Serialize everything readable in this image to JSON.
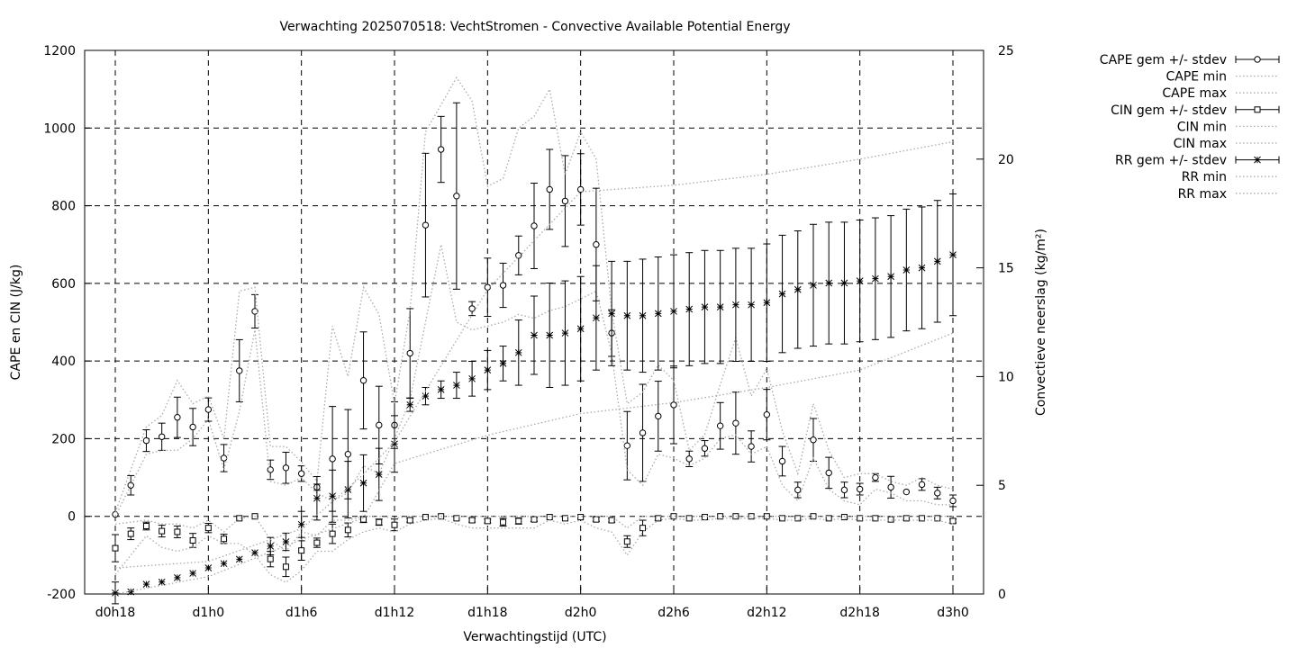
{
  "chart_data": {
    "type": "line",
    "title": "Verwachting 2025070518: VechtStromen - Convective Available Potential Energy",
    "xlabel": "Verwachtingstijd (UTC)",
    "ylabel": "CAPE en CIN (J/kg)",
    "y2label": "Convectieve neerslag (kg/m²)",
    "xlim": [
      0,
      54
    ],
    "ylim": [
      -200,
      1200
    ],
    "y2lim": [
      0,
      25
    ],
    "x_ticks": [
      {
        "x": 0,
        "label": "d0h18"
      },
      {
        "x": 6,
        "label": "d1h0"
      },
      {
        "x": 12,
        "label": "d1h6"
      },
      {
        "x": 18,
        "label": "d1h12"
      },
      {
        "x": 24,
        "label": "d1h18"
      },
      {
        "x": 30,
        "label": "d2h0"
      },
      {
        "x": 36,
        "label": "d2h6"
      },
      {
        "x": 42,
        "label": "d2h12"
      },
      {
        "x": 48,
        "label": "d2h18"
      },
      {
        "x": 54,
        "label": "d3h0"
      }
    ],
    "y_ticks": [
      "-200",
      "0",
      "200",
      "400",
      "600",
      "800",
      "1000",
      "1200"
    ],
    "y2_ticks": [
      "0",
      "5",
      "10",
      "15",
      "20",
      "25"
    ],
    "grid": true,
    "legend_position": "outside-right",
    "legend": [
      "CAPE gem +/- stdev",
      "CAPE min",
      "CAPE max",
      "CIN gem +/- stdev",
      "CIN min",
      "CIN max",
      "RR gem +/- stdev",
      "RR min",
      "RR max"
    ],
    "series": [
      {
        "name": "CAPE gem +/- stdev",
        "axis": "y",
        "marker": "circle",
        "x": [
          0,
          1,
          2,
          3,
          4,
          5,
          6,
          7,
          8,
          9,
          10,
          11,
          12,
          13,
          14,
          15,
          16,
          17,
          18,
          19,
          20,
          21,
          22,
          23,
          24,
          25,
          26,
          27,
          28,
          29,
          30,
          31,
          32,
          33,
          34,
          35,
          36,
          37,
          38,
          39,
          40,
          41,
          42,
          43,
          44,
          45,
          46,
          47,
          48,
          49,
          50,
          51,
          52,
          53,
          54
        ],
        "y": [
          5,
          80,
          195,
          205,
          255,
          230,
          275,
          150,
          375,
          528,
          120,
          125,
          110,
          75,
          148,
          160,
          350,
          235,
          235,
          420,
          750,
          945,
          825,
          535,
          590,
          595,
          672,
          748,
          842,
          812,
          842,
          700,
          472,
          182,
          215,
          258,
          287,
          148,
          175,
          233,
          240,
          180,
          262,
          142,
          68,
          197,
          112,
          68,
          70,
          100,
          75,
          63,
          82,
          60,
          40
        ],
        "err": [
          0,
          25,
          28,
          35,
          52,
          48,
          30,
          35,
          80,
          43,
          25,
          40,
          20,
          8,
          135,
          115,
          125,
          100,
          60,
          115,
          185,
          85,
          240,
          18,
          75,
          57,
          50,
          110,
          103,
          117,
          92,
          145,
          60,
          88,
          125,
          90,
          100,
          20,
          20,
          60,
          80,
          40,
          65,
          38,
          20,
          55,
          40,
          20,
          15,
          10,
          28,
          0,
          15,
          15,
          15
        ]
      },
      {
        "name": "CAPE min",
        "axis": "y",
        "style": "dotted",
        "x": [
          0,
          2,
          3,
          4,
          5,
          6,
          7,
          8,
          9,
          10,
          11,
          12,
          13,
          14,
          15,
          16,
          17,
          18,
          19,
          20,
          21,
          22,
          23,
          24,
          25,
          26,
          27,
          28,
          29,
          30,
          31,
          32,
          33,
          34,
          35,
          36,
          37,
          38,
          39,
          40,
          41,
          42,
          43,
          44,
          45,
          46,
          47,
          48,
          49,
          50,
          51,
          52,
          53,
          54
        ],
        "y": [
          0,
          160,
          170,
          170,
          200,
          250,
          120,
          270,
          480,
          90,
          80,
          100,
          60,
          40,
          60,
          130,
          110,
          200,
          300,
          500,
          700,
          500,
          480,
          490,
          500,
          520,
          510,
          530,
          540,
          560,
          580,
          420,
          120,
          80,
          160,
          150,
          130,
          150,
          200,
          210,
          160,
          180,
          80,
          40,
          150,
          70,
          40,
          30,
          70,
          60,
          40,
          40,
          30,
          30
        ]
      },
      {
        "name": "CAPE max",
        "axis": "y",
        "style": "dotted",
        "x": [
          0,
          2,
          3,
          4,
          5,
          6,
          7,
          8,
          9,
          10,
          11,
          12,
          13,
          14,
          15,
          16,
          17,
          18,
          19,
          20,
          21,
          22,
          23,
          24,
          25,
          26,
          27,
          28,
          29,
          30,
          31,
          32,
          33,
          34,
          35,
          36,
          37,
          38,
          39,
          40,
          41,
          42,
          43,
          44,
          45,
          46,
          47,
          48,
          49,
          50,
          51,
          52,
          53,
          54
        ],
        "y": [
          10,
          230,
          260,
          350,
          290,
          310,
          200,
          580,
          590,
          180,
          180,
          140,
          90,
          490,
          360,
          590,
          520,
          290,
          530,
          990,
          1060,
          1130,
          1070,
          850,
          870,
          1000,
          1030,
          1100,
          880,
          990,
          920,
          530,
          290,
          320,
          390,
          350,
          170,
          210,
          340,
          460,
          310,
          380,
          220,
          110,
          290,
          170,
          100,
          110,
          110,
          90,
          80,
          100,
          80,
          70
        ]
      },
      {
        "name": "CIN gem +/- stdev",
        "axis": "y",
        "marker": "square",
        "x": [
          0,
          1,
          2,
          3,
          4,
          5,
          6,
          7,
          8,
          9,
          10,
          11,
          12,
          13,
          14,
          15,
          16,
          17,
          18,
          19,
          20,
          21,
          22,
          23,
          24,
          25,
          26,
          27,
          28,
          29,
          30,
          31,
          32,
          33,
          34,
          35,
          36,
          37,
          38,
          39,
          40,
          41,
          42,
          43,
          44,
          45,
          46,
          47,
          48,
          49,
          50,
          51,
          52,
          53,
          54
        ],
        "y": [
          -82,
          -45,
          -25,
          -38,
          -40,
          -62,
          -30,
          -58,
          -5,
          0,
          -110,
          -130,
          -88,
          -68,
          -45,
          -35,
          -8,
          -15,
          -22,
          -10,
          -2,
          0,
          -5,
          -10,
          -12,
          -15,
          -12,
          -8,
          -2,
          -5,
          -2,
          -8,
          -10,
          -65,
          -30,
          -5,
          0,
          -5,
          -2,
          0,
          0,
          0,
          0,
          -5,
          -5,
          0,
          -5,
          -2,
          -5,
          -5,
          -8,
          -5,
          -5,
          -5,
          -12
        ],
        "err": [
          35,
          15,
          10,
          15,
          15,
          18,
          12,
          12,
          0,
          0,
          20,
          25,
          25,
          12,
          25,
          18,
          8,
          8,
          15,
          5,
          0,
          0,
          0,
          5,
          5,
          10,
          8,
          5,
          0,
          0,
          0,
          5,
          5,
          15,
          20,
          5,
          0,
          0,
          0,
          0,
          0,
          0,
          0,
          0,
          0,
          0,
          0,
          0,
          0,
          0,
          0,
          0,
          0,
          0,
          5
        ]
      },
      {
        "name": "CIN min",
        "axis": "y",
        "style": "dotted",
        "x": [
          0,
          2,
          3,
          4,
          5,
          6,
          7,
          8,
          9,
          10,
          11,
          12,
          13,
          14,
          15,
          16,
          17,
          18,
          19,
          20,
          21,
          22,
          23,
          24,
          25,
          26,
          27,
          28,
          29,
          30,
          31,
          32,
          33,
          34,
          35,
          36,
          37,
          38,
          39,
          40,
          41,
          42,
          43,
          44,
          45,
          46,
          47,
          48,
          49,
          50,
          51,
          52,
          53,
          54
        ],
        "y": [
          -150,
          -50,
          -80,
          -90,
          -80,
          -50,
          -70,
          -70,
          -100,
          -150,
          -170,
          -140,
          -90,
          -90,
          -60,
          -40,
          -30,
          -40,
          -20,
          -10,
          -5,
          -20,
          -30,
          -30,
          -30,
          -30,
          -30,
          -10,
          -20,
          -10,
          -30,
          -40,
          -100,
          -40,
          -10,
          -5,
          -10,
          -10,
          -5,
          -5,
          -5,
          -5,
          -10,
          -10,
          -5,
          -10,
          -5,
          -10,
          -10,
          -10,
          -10,
          -10,
          -10,
          -20
        ]
      },
      {
        "name": "CIN max",
        "axis": "y",
        "style": "dotted",
        "x": [
          0,
          2,
          3,
          4,
          5,
          6,
          7,
          8,
          9,
          10,
          11,
          12,
          13,
          14,
          15,
          16,
          17,
          18,
          19,
          20,
          21,
          22,
          23,
          24,
          25,
          26,
          27,
          28,
          29,
          30,
          31,
          32,
          33,
          34,
          35,
          36,
          37,
          38,
          39,
          40,
          41,
          42,
          43,
          44,
          45,
          46,
          47,
          48,
          49,
          50,
          51,
          52,
          53,
          54
        ],
        "y": [
          -20,
          -10,
          -20,
          -20,
          -30,
          -10,
          -40,
          -5,
          0,
          -60,
          -90,
          -40,
          -50,
          -10,
          -10,
          0,
          0,
          -5,
          0,
          0,
          0,
          0,
          0,
          0,
          0,
          0,
          0,
          0,
          0,
          0,
          0,
          0,
          -30,
          0,
          0,
          0,
          0,
          0,
          0,
          0,
          0,
          0,
          0,
          0,
          0,
          0,
          0,
          0,
          0,
          0,
          0,
          0,
          0,
          0
        ]
      },
      {
        "name": "RR gem +/- stdev",
        "axis": "y2",
        "marker": "star",
        "x": [
          0,
          1,
          2,
          3,
          4,
          5,
          6,
          7,
          8,
          9,
          10,
          11,
          12,
          13,
          14,
          15,
          16,
          17,
          18,
          19,
          20,
          21,
          22,
          23,
          24,
          25,
          26,
          27,
          28,
          29,
          30,
          31,
          32,
          33,
          34,
          35,
          36,
          37,
          38,
          39,
          40,
          41,
          42,
          43,
          44,
          45,
          46,
          47,
          48,
          49,
          50,
          51,
          52,
          53,
          54
        ],
        "y": [
          0.05,
          0.1,
          0.45,
          0.55,
          0.75,
          0.95,
          1.2,
          1.4,
          1.6,
          1.9,
          2.2,
          2.4,
          3.2,
          4.4,
          4.5,
          4.8,
          5.1,
          5.5,
          6.9,
          8.7,
          9.1,
          9.4,
          9.6,
          9.9,
          10.3,
          10.6,
          11.1,
          11.9,
          11.9,
          12.0,
          12.2,
          12.7,
          12.9,
          12.8,
          12.8,
          12.9,
          13.0,
          13.1,
          13.2,
          13.2,
          13.3,
          13.3,
          13.4,
          13.8,
          14.0,
          14.2,
          14.3,
          14.3,
          14.4,
          14.5,
          14.6,
          14.9,
          15.0,
          15.3,
          15.6
        ],
        "err": [
          0.5,
          0,
          0,
          0,
          0,
          0,
          0,
          0,
          0,
          0,
          0.4,
          0.4,
          0.6,
          1.0,
          1.2,
          1.3,
          1.3,
          1.2,
          1.3,
          0.3,
          0.4,
          0.4,
          0.6,
          0.8,
          0.9,
          0.8,
          1.5,
          1.8,
          2.4,
          2.4,
          2.4,
          2.4,
          2.4,
          2.5,
          2.6,
          2.6,
          2.6,
          2.6,
          2.6,
          2.6,
          2.6,
          2.6,
          2.7,
          2.7,
          2.7,
          2.8,
          2.8,
          2.8,
          2.8,
          2.8,
          2.8,
          2.8,
          2.8,
          2.8,
          2.8
        ]
      },
      {
        "name": "RR min",
        "axis": "y2",
        "style": "dotted",
        "x": [
          0,
          6,
          12,
          16,
          18,
          24,
          30,
          36,
          42,
          48,
          54
        ],
        "y": [
          0,
          0.8,
          2.5,
          3.5,
          6.0,
          7.3,
          8.3,
          8.8,
          9.5,
          10.3,
          12.0
        ]
      },
      {
        "name": "RR max",
        "axis": "y2",
        "style": "dotted",
        "x": [
          0,
          6,
          12,
          16,
          18,
          24,
          30,
          36,
          42,
          48,
          54
        ],
        "y": [
          1.2,
          1.5,
          3.0,
          5.5,
          7.0,
          14.0,
          18.5,
          18.8,
          19.3,
          20.0,
          20.8
        ]
      }
    ]
  }
}
